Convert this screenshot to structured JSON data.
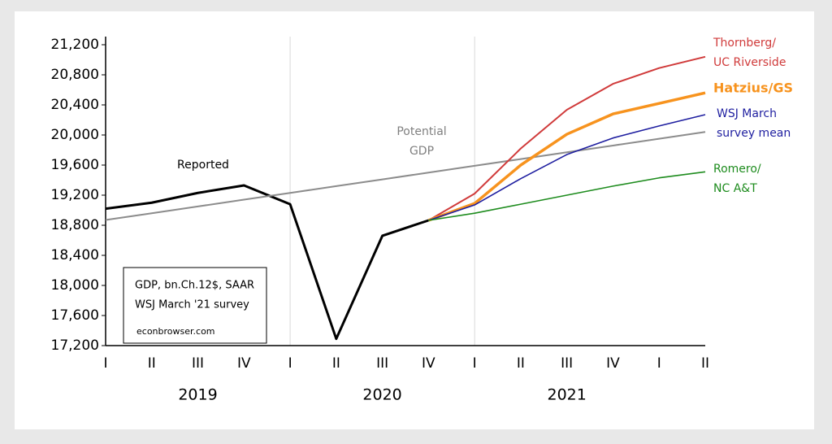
{
  "chart_data": {
    "type": "line",
    "categories": [
      "I",
      "II",
      "III",
      "IV",
      "I",
      "II",
      "III",
      "IV",
      "I",
      "II",
      "III",
      "IV",
      "I",
      "II"
    ],
    "years": [
      "2019",
      "2020",
      "2021"
    ],
    "ylim": [
      17200,
      21200
    ],
    "yticks": [
      {
        "value": 17200,
        "label": "17,200"
      },
      {
        "value": 17600,
        "label": "17,600"
      },
      {
        "value": 18000,
        "label": "18,000"
      },
      {
        "value": 18400,
        "label": "18,400"
      },
      {
        "value": 18800,
        "label": "18,800"
      },
      {
        "value": 19200,
        "label": "19,200"
      },
      {
        "value": 19600,
        "label": "19,600"
      },
      {
        "value": 20000,
        "label": "20,000"
      },
      {
        "value": 20400,
        "label": "20,400"
      },
      {
        "value": 20800,
        "label": "20,800"
      },
      {
        "value": 21200,
        "label": "21,200"
      }
    ],
    "series": [
      {
        "name": [
          "Reported"
        ],
        "color": "#000000",
        "values": [
          19020,
          19100,
          19230,
          19330,
          19080,
          17290,
          18660,
          18865,
          null,
          null,
          null,
          null,
          null,
          null
        ]
      },
      {
        "name": [
          "Potential",
          "GDP"
        ],
        "color": "#8c8c8c",
        "values": [
          18870,
          18960,
          19050,
          19140,
          19230,
          19320,
          19410,
          19500,
          19590,
          19680,
          19770,
          19860,
          19950,
          20040
        ]
      },
      {
        "name": [
          "Thornberg/",
          "UC Riverside"
        ],
        "color": "#d03a3a",
        "values": [
          null,
          null,
          null,
          null,
          null,
          null,
          null,
          18865,
          19220,
          19820,
          20335,
          20680,
          20890,
          21040
        ]
      },
      {
        "name": [
          "Hatzius/GS"
        ],
        "color": "#f7931e",
        "values": [
          null,
          null,
          null,
          null,
          null,
          null,
          null,
          18865,
          19090,
          19600,
          20010,
          20280,
          20420,
          20560
        ]
      },
      {
        "name": [
          "WSJ March",
          "survey mean"
        ],
        "color": "#1f1fa0",
        "values": [
          null,
          null,
          null,
          null,
          null,
          null,
          null,
          18865,
          19070,
          19420,
          19740,
          19960,
          20120,
          20270
        ]
      },
      {
        "name": [
          "Romero/",
          "NC A&T"
        ],
        "color": "#1e8c1e",
        "values": [
          null,
          null,
          null,
          null,
          null,
          null,
          null,
          18865,
          18960,
          19080,
          19200,
          19320,
          19430,
          19510
        ]
      }
    ],
    "annotations": [
      "GDP, bn.Ch.12$, SAAR",
      "WSJ March '21 survey",
      "econbrowser.com"
    ]
  }
}
